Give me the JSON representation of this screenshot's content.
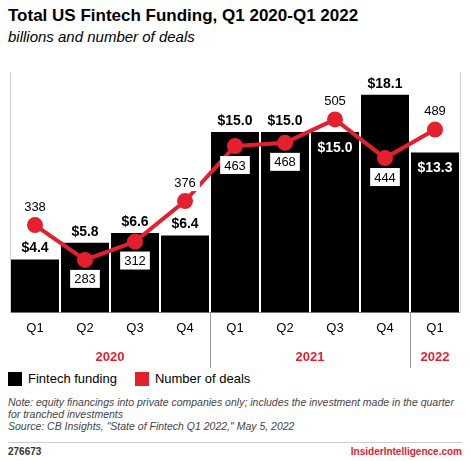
{
  "chart_data": {
    "type": "bar",
    "title": "Total US Fintech Funding, Q1 2020-Q1 2022",
    "subtitle": "billions and number of deals",
    "categories": [
      "Q1",
      "Q2",
      "Q3",
      "Q4",
      "Q1",
      "Q2",
      "Q3",
      "Q4",
      "Q1"
    ],
    "years": [
      "2020",
      "2020",
      "2020",
      "2020",
      "2021",
      "2021",
      "2021",
      "2021",
      "2022"
    ],
    "series": [
      {
        "name": "Fintech funding",
        "type": "bar",
        "color": "#000000",
        "values": [
          4.4,
          5.8,
          6.6,
          6.4,
          15.0,
          15.0,
          15.0,
          18.1,
          13.3
        ],
        "value_labels": [
          "$4.4",
          "$5.8",
          "$6.6",
          "$6.4",
          "$15.0",
          "$15.0",
          "$15.0",
          "$18.1",
          "$13.3"
        ]
      },
      {
        "name": "Number of deals",
        "type": "line",
        "color": "#e5202e",
        "axis": "y2",
        "marker": "circle",
        "values": [
          338,
          283,
          312,
          376,
          463,
          468,
          505,
          444,
          489
        ]
      }
    ],
    "ylim": [
      0,
      20
    ],
    "y2lim": [
      200,
      580
    ],
    "grid": false,
    "tick_labels": "x",
    "data_labels": true,
    "legend": "bottom"
  },
  "note": "Note: equity financings into private companies only; includes the investment made in the quarter for tranched investments",
  "source": "Source: CB Insights, \"State of Fintech Q1 2022,\" May 5, 2022",
  "footer": {
    "id": "276673",
    "brand": "InsiderIntelligence.com"
  }
}
